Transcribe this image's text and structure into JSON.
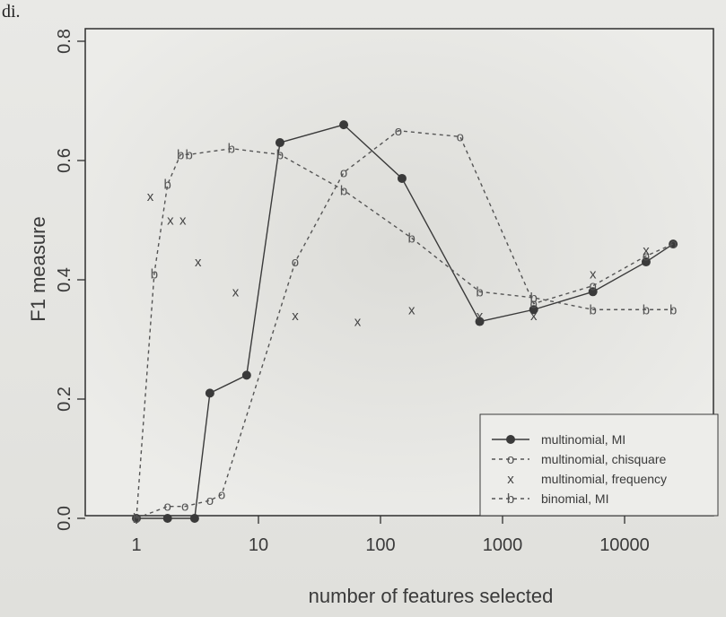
{
  "panel_tag": "di.",
  "chart_data": {
    "type": "line",
    "xscale": "log",
    "xlabel": "number of features selected",
    "ylabel": "F1 measure",
    "xlim": [
      1,
      30000
    ],
    "ylim": [
      0,
      0.8
    ],
    "x_ticks": [
      {
        "value": 1,
        "label": "1"
      },
      {
        "value": 10,
        "label": "10"
      },
      {
        "value": 100,
        "label": "100"
      },
      {
        "value": 1000,
        "label": "1000"
      },
      {
        "value": 10000,
        "label": "10000"
      }
    ],
    "y_ticks": [
      {
        "value": 0,
        "label": "0.0"
      },
      {
        "value": 0.2,
        "label": "0.2"
      },
      {
        "value": 0.4,
        "label": "0.4"
      },
      {
        "value": 0.6,
        "label": "0.6"
      },
      {
        "value": 0.8,
        "label": "0.8"
      }
    ],
    "legend_position": "bottom-right",
    "series": [
      {
        "name": "multinomial, MI",
        "marker": "filled-circle",
        "line": "solid",
        "color": "#3a3a3a",
        "x": [
          1,
          1.8,
          3,
          4,
          8,
          15,
          50,
          150,
          650,
          1800,
          5500,
          15000,
          25000
        ],
        "y": [
          0.0,
          0.0,
          0.0,
          0.21,
          0.24,
          0.63,
          0.66,
          0.57,
          0.33,
          0.35,
          0.38,
          0.43,
          0.46
        ]
      },
      {
        "name": "multinomial, chisquare",
        "marker": "o",
        "line": "dashed",
        "color": "#555555",
        "x": [
          1,
          1.8,
          2.5,
          4,
          5,
          20,
          50,
          140,
          450,
          1800,
          5500,
          15000,
          25000
        ],
        "y": [
          0.0,
          0.02,
          0.02,
          0.03,
          0.04,
          0.43,
          0.58,
          0.65,
          0.64,
          0.36,
          0.39,
          0.44,
          0.46
        ]
      },
      {
        "name": "multinomial, frequency",
        "marker": "x",
        "line": "none",
        "color": "#444444",
        "x": [
          1.3,
          1.9,
          2.4,
          3.2,
          6.5,
          20,
          65,
          180,
          650,
          1800,
          5500,
          15000
        ],
        "y": [
          0.54,
          0.5,
          0.5,
          0.43,
          0.38,
          0.34,
          0.33,
          0.35,
          0.34,
          0.34,
          0.41,
          0.45
        ]
      },
      {
        "name": "binomial, MI",
        "marker": "b",
        "line": "dashed",
        "color": "#555555",
        "x": [
          1,
          1.4,
          1.8,
          2.3,
          2.7,
          6,
          15,
          50,
          180,
          650,
          1800,
          5500,
          15000,
          25000
        ],
        "y": [
          0.0,
          0.41,
          0.56,
          0.61,
          0.61,
          0.62,
          0.61,
          0.55,
          0.47,
          0.38,
          0.37,
          0.35,
          0.35,
          0.35
        ]
      }
    ]
  }
}
